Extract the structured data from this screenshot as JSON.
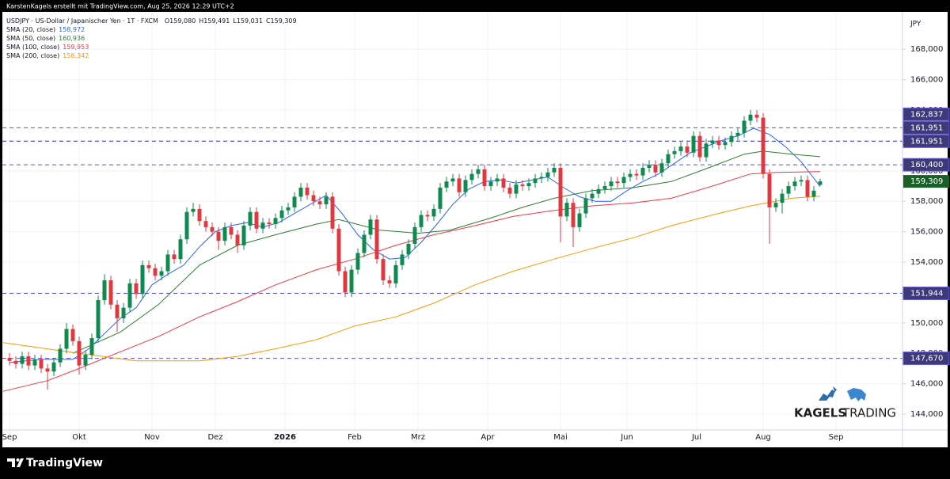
{
  "header": {
    "credit": "KarstenKagels erstellt mit TradingView.com, Aug 25, 2026 12:29 UTC+2"
  },
  "chart_data": {
    "type": "candlestick",
    "title": "USDJPY · US-Dollar / Japanischer Yen · 1T · FXCM",
    "ohlc_legend": [
      {
        "key": "O",
        "label": "159,080"
      },
      {
        "key": "H",
        "label": "159,491"
      },
      {
        "key": "L",
        "label": "159,031"
      },
      {
        "key": "C",
        "label": "159,309"
      }
    ],
    "currency": "JPY",
    "up_color": "#0e8a4e",
    "down_color": "#e0383e",
    "x": [
      0,
      2,
      4,
      6,
      8,
      10,
      12,
      14,
      16,
      18,
      20,
      22,
      24,
      26,
      28,
      30,
      32,
      34,
      36,
      38,
      40,
      42,
      44,
      46,
      48,
      50,
      52,
      54,
      56,
      58,
      60,
      62,
      64,
      66,
      68,
      70,
      72,
      74,
      76,
      78,
      80,
      82,
      84,
      86,
      88,
      90,
      92,
      94,
      96,
      98,
      100,
      102,
      104,
      106,
      108,
      110,
      112,
      114,
      116,
      118,
      120,
      122,
      124,
      126,
      128,
      130,
      132,
      134,
      136,
      138,
      140,
      142,
      144,
      146,
      148,
      150,
      152,
      154,
      156,
      158,
      160,
      162,
      164,
      166,
      168,
      170,
      172,
      174,
      176,
      178,
      180,
      182,
      184,
      186,
      188,
      190,
      192,
      194,
      196,
      198,
      200,
      202,
      204,
      206,
      208,
      210,
      212,
      214,
      216,
      218,
      220,
      222,
      224,
      226,
      228,
      230,
      232,
      234,
      236,
      238,
      240,
      242,
      244,
      246,
      248,
      250,
      252,
      254,
      256
    ],
    "open": [
      147.7,
      147.5,
      147.3,
      147.8,
      147.2,
      147.6,
      147.0,
      146.8,
      147.4,
      148.3,
      149.6,
      148.8,
      147.2,
      147.9,
      149.0,
      151.5,
      152.8,
      151.2,
      150.3,
      151.0,
      152.6,
      151.9,
      153.8,
      153.6,
      153.1,
      153.4,
      154.5,
      154.2,
      155.5,
      157.3,
      157.5,
      156.7,
      156.3,
      156.0,
      155.4,
      156.3,
      155.8,
      155.1,
      156.4,
      157.3,
      156.2,
      156.6,
      156.5,
      156.9,
      157.4,
      157.6,
      158.3,
      158.9,
      158.4,
      158.0,
      157.8,
      158.3,
      156.2,
      153.4,
      152.0,
      153.5,
      154.6,
      155.8,
      156.8,
      154.2,
      152.8,
      152.6,
      153.8,
      154.5,
      155.2,
      156.3,
      157.1,
      157.0,
      157.5,
      158.9,
      159.3,
      159.5,
      158.6,
      159.4,
      159.8,
      160.1,
      159.0,
      159.3,
      159.5,
      158.9,
      158.5,
      159.1,
      159.0,
      159.2,
      159.5,
      159.6,
      159.9,
      160.2,
      157.0,
      157.9,
      156.3,
      157.2,
      158.2,
      158.5,
      158.8,
      159.0,
      159.3,
      159.2,
      159.6,
      159.8,
      159.7,
      160.2,
      160.4,
      159.9,
      160.5,
      161.1,
      161.3,
      161.6,
      161.2,
      162.3,
      160.9,
      161.8,
      162.0,
      161.7,
      161.9,
      162.3,
      162.5,
      163.3,
      163.7,
      163.5,
      159.8,
      157.6,
      157.9,
      158.5,
      159.0,
      159.3,
      159.4,
      158.3,
      159.08
    ],
    "high": [
      148.0,
      147.8,
      148.1,
      148.1,
      147.9,
      147.9,
      147.3,
      147.7,
      148.6,
      150.0,
      149.9,
      149.1,
      148.2,
      149.3,
      151.8,
      153.2,
      153.1,
      151.5,
      151.3,
      152.9,
      152.9,
      154.1,
      154.1,
      153.9,
      153.7,
      154.8,
      154.8,
      155.8,
      157.6,
      157.9,
      157.8,
      157.0,
      156.6,
      156.3,
      156.6,
      156.6,
      156.1,
      156.7,
      157.6,
      157.6,
      156.9,
      156.9,
      157.2,
      157.7,
      157.9,
      158.6,
      159.2,
      159.2,
      158.7,
      158.3,
      158.6,
      158.6,
      156.5,
      153.7,
      153.8,
      154.9,
      156.1,
      157.1,
      157.1,
      154.5,
      153.1,
      154.1,
      154.8,
      155.5,
      156.6,
      157.4,
      157.4,
      157.8,
      159.2,
      159.6,
      159.8,
      159.8,
      159.7,
      160.1,
      160.4,
      160.4,
      159.6,
      159.8,
      159.8,
      159.2,
      159.4,
      159.4,
      159.5,
      159.8,
      159.9,
      160.2,
      160.5,
      160.5,
      158.2,
      158.2,
      157.5,
      158.5,
      158.8,
      159.1,
      159.3,
      159.6,
      159.6,
      159.9,
      160.1,
      160.1,
      160.5,
      160.7,
      160.7,
      160.8,
      161.4,
      161.6,
      161.9,
      161.9,
      162.6,
      162.6,
      162.1,
      162.3,
      162.3,
      162.2,
      162.6,
      162.8,
      163.6,
      164.0,
      164.0,
      163.8,
      160.1,
      158.2,
      158.8,
      159.3,
      159.6,
      159.7,
      159.7,
      159.0,
      159.491
    ],
    "low": [
      147.2,
      147.0,
      147.0,
      146.9,
      146.9,
      146.7,
      145.6,
      146.5,
      147.1,
      148.0,
      148.5,
      146.6,
      146.9,
      147.6,
      148.7,
      151.2,
      150.9,
      149.4,
      150.0,
      150.7,
      151.6,
      151.6,
      153.3,
      152.8,
      152.8,
      153.1,
      153.9,
      153.9,
      155.2,
      157.0,
      156.4,
      156.0,
      155.7,
      154.8,
      155.1,
      155.5,
      154.6,
      154.8,
      156.1,
      155.9,
      155.9,
      156.2,
      156.2,
      156.6,
      157.1,
      157.3,
      158.0,
      158.1,
      157.7,
      157.5,
      157.5,
      155.9,
      153.1,
      151.7,
      151.7,
      153.2,
      154.3,
      155.5,
      153.9,
      152.5,
      152.3,
      152.3,
      153.5,
      154.2,
      154.9,
      156.0,
      156.7,
      156.7,
      157.2,
      158.6,
      159.0,
      158.3,
      158.3,
      159.1,
      159.5,
      158.7,
      158.7,
      159.0,
      158.6,
      158.2,
      158.2,
      158.7,
      158.7,
      158.9,
      159.2,
      159.3,
      159.6,
      155.3,
      156.7,
      155.0,
      156.0,
      156.9,
      157.9,
      158.2,
      158.5,
      158.7,
      158.9,
      158.9,
      159.3,
      159.4,
      159.4,
      159.9,
      159.6,
      159.6,
      160.2,
      160.8,
      161.0,
      160.9,
      160.9,
      160.6,
      160.6,
      161.5,
      161.4,
      161.4,
      161.6,
      162.0,
      162.2,
      163.0,
      163.2,
      159.5,
      155.2,
      157.3,
      157.2,
      158.2,
      158.7,
      159.0,
      158.0,
      158.0,
      159.031
    ],
    "close": [
      147.5,
      147.3,
      147.8,
      147.2,
      147.6,
      147.0,
      146.8,
      147.4,
      148.3,
      149.6,
      148.8,
      147.2,
      147.9,
      149.0,
      151.5,
      152.8,
      151.2,
      150.3,
      151.0,
      152.6,
      151.9,
      153.8,
      153.6,
      153.1,
      153.4,
      154.5,
      154.2,
      155.5,
      157.3,
      157.5,
      156.7,
      156.3,
      156.0,
      155.4,
      156.3,
      155.8,
      155.1,
      156.4,
      157.3,
      156.2,
      156.6,
      156.5,
      156.9,
      157.4,
      157.6,
      158.3,
      158.9,
      158.4,
      158.0,
      157.8,
      158.3,
      156.2,
      153.4,
      152.0,
      153.5,
      154.6,
      155.8,
      156.8,
      154.2,
      152.8,
      152.6,
      153.8,
      154.5,
      155.2,
      156.3,
      157.1,
      157.0,
      157.5,
      158.9,
      159.3,
      159.5,
      158.6,
      159.4,
      159.8,
      160.1,
      159.0,
      159.3,
      159.5,
      158.9,
      158.5,
      159.1,
      159.0,
      159.2,
      159.5,
      159.6,
      159.9,
      160.2,
      157.0,
      157.9,
      156.3,
      157.2,
      158.2,
      158.5,
      158.8,
      159.0,
      159.3,
      159.2,
      159.6,
      159.8,
      159.7,
      160.2,
      160.4,
      159.9,
      160.5,
      161.1,
      161.3,
      161.6,
      161.2,
      162.3,
      160.9,
      161.8,
      162.0,
      161.7,
      161.9,
      162.3,
      162.5,
      163.3,
      163.7,
      163.5,
      159.8,
      157.6,
      157.9,
      158.5,
      159.0,
      159.3,
      159.4,
      158.3,
      158.7,
      159.309
    ],
    "overlays": [
      {
        "name": "SMA (20, close)",
        "color": "#2962ff",
        "value_label": "158,972",
        "x": [
          0,
          10,
          20,
          25,
          30,
          35,
          40,
          45,
          50,
          55,
          60,
          65,
          70,
          75,
          80,
          85,
          90,
          95,
          100,
          105,
          110,
          115,
          120,
          125,
          130,
          135,
          140,
          145,
          150,
          155,
          160,
          165,
          170,
          175,
          180,
          185,
          190,
          195,
          200,
          205,
          210,
          215,
          220,
          225,
          230,
          235,
          240,
          245,
          250,
          256
        ],
        "values": [
          147.4,
          147.6,
          147.6,
          148.3,
          149.3,
          150.3,
          151.0,
          152.5,
          153.2,
          153.8,
          155.0,
          156.0,
          156.4,
          156.6,
          156.3,
          156.6,
          157.2,
          157.8,
          158.4,
          157.2,
          155.8,
          154.8,
          154.2,
          154.3,
          155.3,
          156.5,
          157.8,
          158.8,
          159.3,
          159.4,
          159.2,
          159.4,
          159.6,
          158.9,
          158.3,
          158.0,
          158.0,
          158.7,
          159.3,
          159.8,
          160.5,
          161.2,
          161.6,
          162.0,
          162.3,
          162.8,
          162.4,
          161.6,
          160.6,
          158.972
        ]
      },
      {
        "name": "SMA (50, close)",
        "color": "#2e7d32",
        "value_label": "160,936",
        "x": [
          20,
          35,
          47,
          60,
          72,
          84,
          97,
          104,
          117,
          129,
          139,
          152,
          162,
          172,
          184,
          197,
          209,
          222,
          232,
          238,
          247,
          256
        ],
        "values": [
          148.0,
          149.4,
          151.2,
          153.8,
          155.1,
          155.8,
          156.5,
          156.8,
          156.1,
          155.9,
          156.1,
          156.9,
          157.6,
          158.2,
          158.7,
          158.9,
          159.3,
          160.3,
          161.1,
          161.3,
          161.1,
          160.936
        ]
      },
      {
        "name": "SMA (100, close)",
        "color": "#f23645",
        "value_label": "159,953",
        "x": [
          -2,
          12,
          22,
          35,
          47,
          60,
          72,
          84,
          97,
          109,
          122,
          134,
          147,
          159,
          172,
          184,
          197,
          209,
          222,
          234,
          242,
          256
        ],
        "values": [
          145.5,
          146.2,
          147.0,
          148.1,
          149.1,
          150.4,
          151.4,
          152.5,
          153.5,
          154.2,
          155.1,
          155.8,
          156.4,
          157.0,
          157.4,
          157.7,
          157.9,
          158.2,
          159.0,
          159.8,
          159.9,
          159.953
        ]
      },
      {
        "name": "SMA (200, close)",
        "color": "#ff9800",
        "value_label": "158,342",
        "x": [
          -2,
          22,
          40,
          60,
          72,
          84,
          97,
          109,
          122,
          134,
          147,
          159,
          172,
          184,
          197,
          209,
          222,
          234,
          247,
          256
        ],
        "values": [
          148.7,
          148.0,
          147.5,
          147.5,
          147.8,
          148.3,
          148.9,
          149.8,
          150.4,
          151.3,
          152.5,
          153.4,
          154.2,
          154.9,
          155.6,
          156.4,
          157.1,
          157.7,
          158.2,
          158.342
        ]
      }
    ],
    "levels": [
      {
        "value": 162.837,
        "label": "162,837"
      },
      {
        "value": 161.951,
        "label": "161,951"
      },
      {
        "value": 161.951,
        "label": "161,951"
      },
      {
        "value": 160.4,
        "label": "160,400"
      },
      {
        "value": 151.944,
        "label": "151,944"
      },
      {
        "value": 147.67,
        "label": "147,670"
      }
    ],
    "level_color": "#3e3a7a",
    "last_price_label": "159,309",
    "last_price_color": "#1b5e2a",
    "xlim": [
      -3,
      282
    ],
    "xticks": [
      {
        "value": 0,
        "label": "Sep"
      },
      {
        "value": 22,
        "label": "Okt"
      },
      {
        "value": 45,
        "label": "Nov"
      },
      {
        "value": 65,
        "label": "Dez"
      },
      {
        "value": 87,
        "label": "2026"
      },
      {
        "value": 109,
        "label": "Feb"
      },
      {
        "value": 129,
        "label": "Mrz"
      },
      {
        "value": 151,
        "label": "Apr"
      },
      {
        "value": 174,
        "label": "Mai"
      },
      {
        "value": 195,
        "label": "Jun"
      },
      {
        "value": 217,
        "label": "Jul"
      },
      {
        "value": 238,
        "label": "Aug"
      },
      {
        "value": 261,
        "label": "Sep"
      }
    ],
    "ylim": [
      142.96,
      170.46
    ],
    "yticks": [
      {
        "value": 144,
        "label": "144,000"
      },
      {
        "value": 146,
        "label": "146,000"
      },
      {
        "value": 148,
        "label": "148,000"
      },
      {
        "value": 150,
        "label": "150,000"
      },
      {
        "value": 152,
        "label": "152,000"
      },
      {
        "value": 154,
        "label": "154,000"
      },
      {
        "value": 156,
        "label": "156,000"
      },
      {
        "value": 158,
        "label": "158,000"
      },
      {
        "value": 160,
        "label": "160,000"
      },
      {
        "value": 162,
        "label": "162,000"
      },
      {
        "value": 164,
        "label": "164,000"
      },
      {
        "value": 166,
        "label": "166,000"
      },
      {
        "value": 168,
        "label": "168,000"
      }
    ],
    "grid": true
  },
  "watermark": {
    "brand": "KAGELS",
    "brand2": "TRADING"
  },
  "footer": {
    "logo": "TradingView"
  }
}
